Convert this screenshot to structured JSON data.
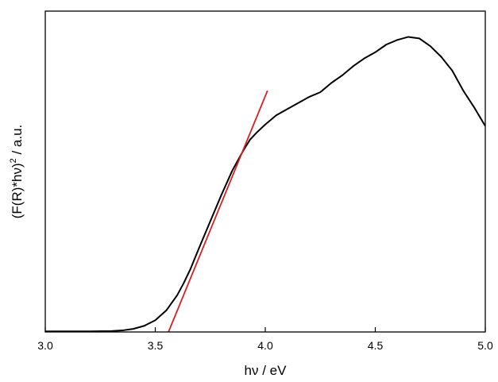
{
  "chart_data": {
    "type": "line",
    "title": "",
    "xlabel": "hν / eV",
    "ylabel_main": "(F(R)*hν)",
    "ylabel_sup": "2",
    "ylabel_unit": " / a.u.",
    "xlim": [
      3.0,
      5.0
    ],
    "ylim": [
      0,
      1
    ],
    "x_ticks": [
      3.0,
      3.5,
      4.0,
      4.5,
      5.0
    ],
    "x_tick_labels": [
      "3.0",
      "3.5",
      "4.0",
      "4.5",
      "5.0"
    ],
    "y_ticks_labeled": false,
    "grid": false,
    "legend": "none",
    "series": [
      {
        "color": "#000000",
        "x": [
          3.0,
          3.1,
          3.2,
          3.3,
          3.35,
          3.4,
          3.45,
          3.5,
          3.55,
          3.6,
          3.63,
          3.66,
          3.7,
          3.75,
          3.8,
          3.85,
          3.9,
          3.93,
          3.96,
          4.0,
          4.05,
          4.1,
          4.15,
          4.2,
          4.25,
          4.3,
          4.35,
          4.4,
          4.45,
          4.5,
          4.55,
          4.6,
          4.65,
          4.7,
          4.75,
          4.8,
          4.85,
          4.9,
          4.95,
          5.0
        ],
        "y": [
          0.002,
          0.002,
          0.002,
          0.003,
          0.005,
          0.01,
          0.02,
          0.038,
          0.07,
          0.12,
          0.16,
          0.205,
          0.275,
          0.36,
          0.445,
          0.525,
          0.59,
          0.625,
          0.648,
          0.675,
          0.705,
          0.725,
          0.745,
          0.765,
          0.78,
          0.81,
          0.835,
          0.865,
          0.89,
          0.91,
          0.935,
          0.95,
          0.96,
          0.955,
          0.93,
          0.895,
          0.85,
          0.785,
          0.73,
          0.67
        ]
      },
      {
        "color": "#d62020",
        "x": [
          3.56,
          4.01
        ],
        "y": [
          0.0,
          0.785
        ]
      }
    ]
  }
}
